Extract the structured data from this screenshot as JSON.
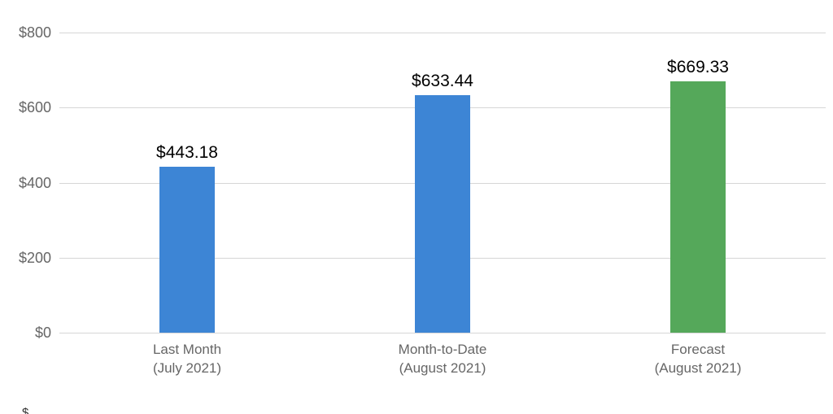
{
  "chart_data": {
    "type": "bar",
    "title": "",
    "categories": [
      "Last Month\n(July 2021)",
      "Month-to-Date\n(August 2021)",
      "Forecast\n(August 2021)"
    ],
    "values": [
      443.18,
      633.44,
      669.33
    ],
    "value_labels": [
      "$443.18",
      "$633.44",
      "$669.33"
    ],
    "bar_colors": [
      "#3d85d5",
      "#3d85d5",
      "#55a85a"
    ],
    "y_ticks": [
      {
        "value": 0,
        "label": "$0"
      },
      {
        "value": 200,
        "label": "$200"
      },
      {
        "value": 400,
        "label": "$400"
      },
      {
        "value": 600,
        "label": "$600"
      },
      {
        "value": 800,
        "label": "$800"
      }
    ],
    "xlabel": "",
    "ylabel": "",
    "ylim": [
      0,
      800
    ],
    "grid": true,
    "legend_position": "none",
    "colors": {
      "bar_blue": "#3d85d5",
      "bar_green": "#55a85a",
      "gridline": "#d6d6d6",
      "axis_text": "#666666",
      "value_text": "#000000",
      "background": "#ffffff"
    }
  },
  "clipped_bottom_text": "$"
}
